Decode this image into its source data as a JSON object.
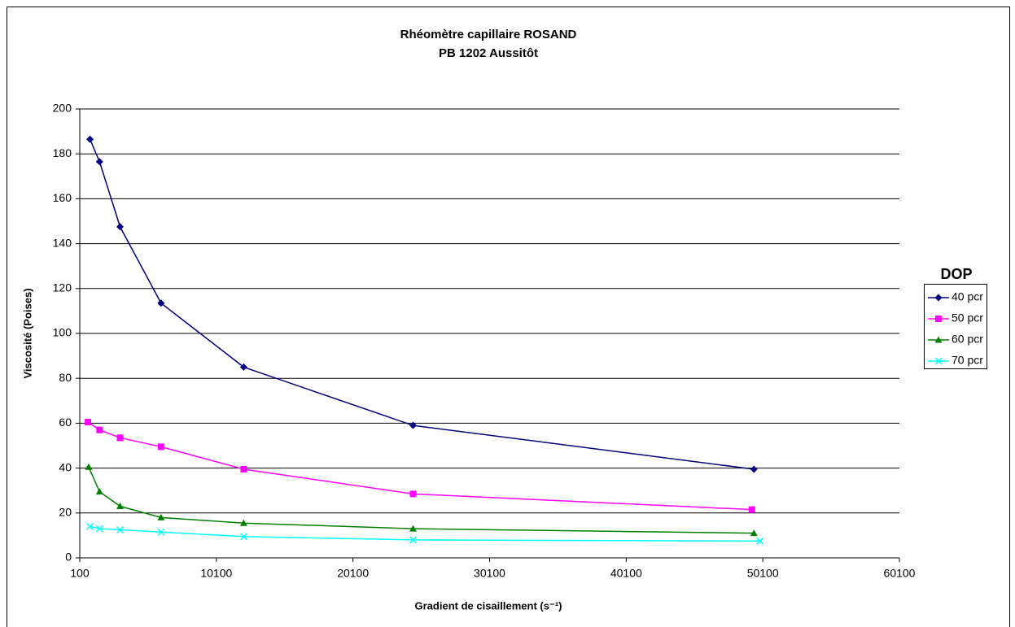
{
  "chart_data": {
    "type": "line",
    "title": "Rhéomètre capillaire ROSAND",
    "subtitle": "PB 1202 Aussitôt",
    "xlabel": "Gradient de cisaillement (s⁻¹)",
    "ylabel": "Viscosité (Poises)",
    "legend_title": "DOP",
    "legend": "right",
    "grid": true,
    "xlim": [
      100,
      60100
    ],
    "xticks": [
      100,
      10100,
      20100,
      30100,
      40100,
      50100,
      60100
    ],
    "ylim": [
      0,
      200
    ],
    "yticks": [
      0,
      20,
      40,
      60,
      80,
      100,
      120,
      140,
      160,
      180,
      200
    ],
    "series": [
      {
        "name": "40 pcr",
        "color": "#000080",
        "marker": "diamond",
        "x": [
          850,
          1550,
          3050,
          6050,
          12100,
          24500,
          49450
        ],
        "values": [
          186.5,
          176.5,
          147.5,
          113.5,
          85,
          59,
          39.5
        ]
      },
      {
        "name": "50 pcr",
        "color": "#ff00ff",
        "marker": "square",
        "x": [
          700,
          1550,
          3050,
          6050,
          12100,
          24500,
          49300
        ],
        "values": [
          60.5,
          57,
          53.5,
          49.5,
          39.5,
          28.5,
          21.5
        ]
      },
      {
        "name": "60 pcr",
        "color": "#008000",
        "marker": "triangle",
        "x": [
          750,
          1550,
          3050,
          6050,
          12100,
          24500,
          49450
        ],
        "values": [
          40.5,
          29.5,
          23,
          18,
          15.5,
          13,
          11
        ]
      },
      {
        "name": "70 pcr",
        "color": "#00ffff",
        "marker": "x",
        "x": [
          850,
          1550,
          3050,
          6050,
          12100,
          24500,
          49900
        ],
        "values": [
          14,
          13,
          12.5,
          11.5,
          9.5,
          8,
          7.5
        ]
      }
    ]
  }
}
